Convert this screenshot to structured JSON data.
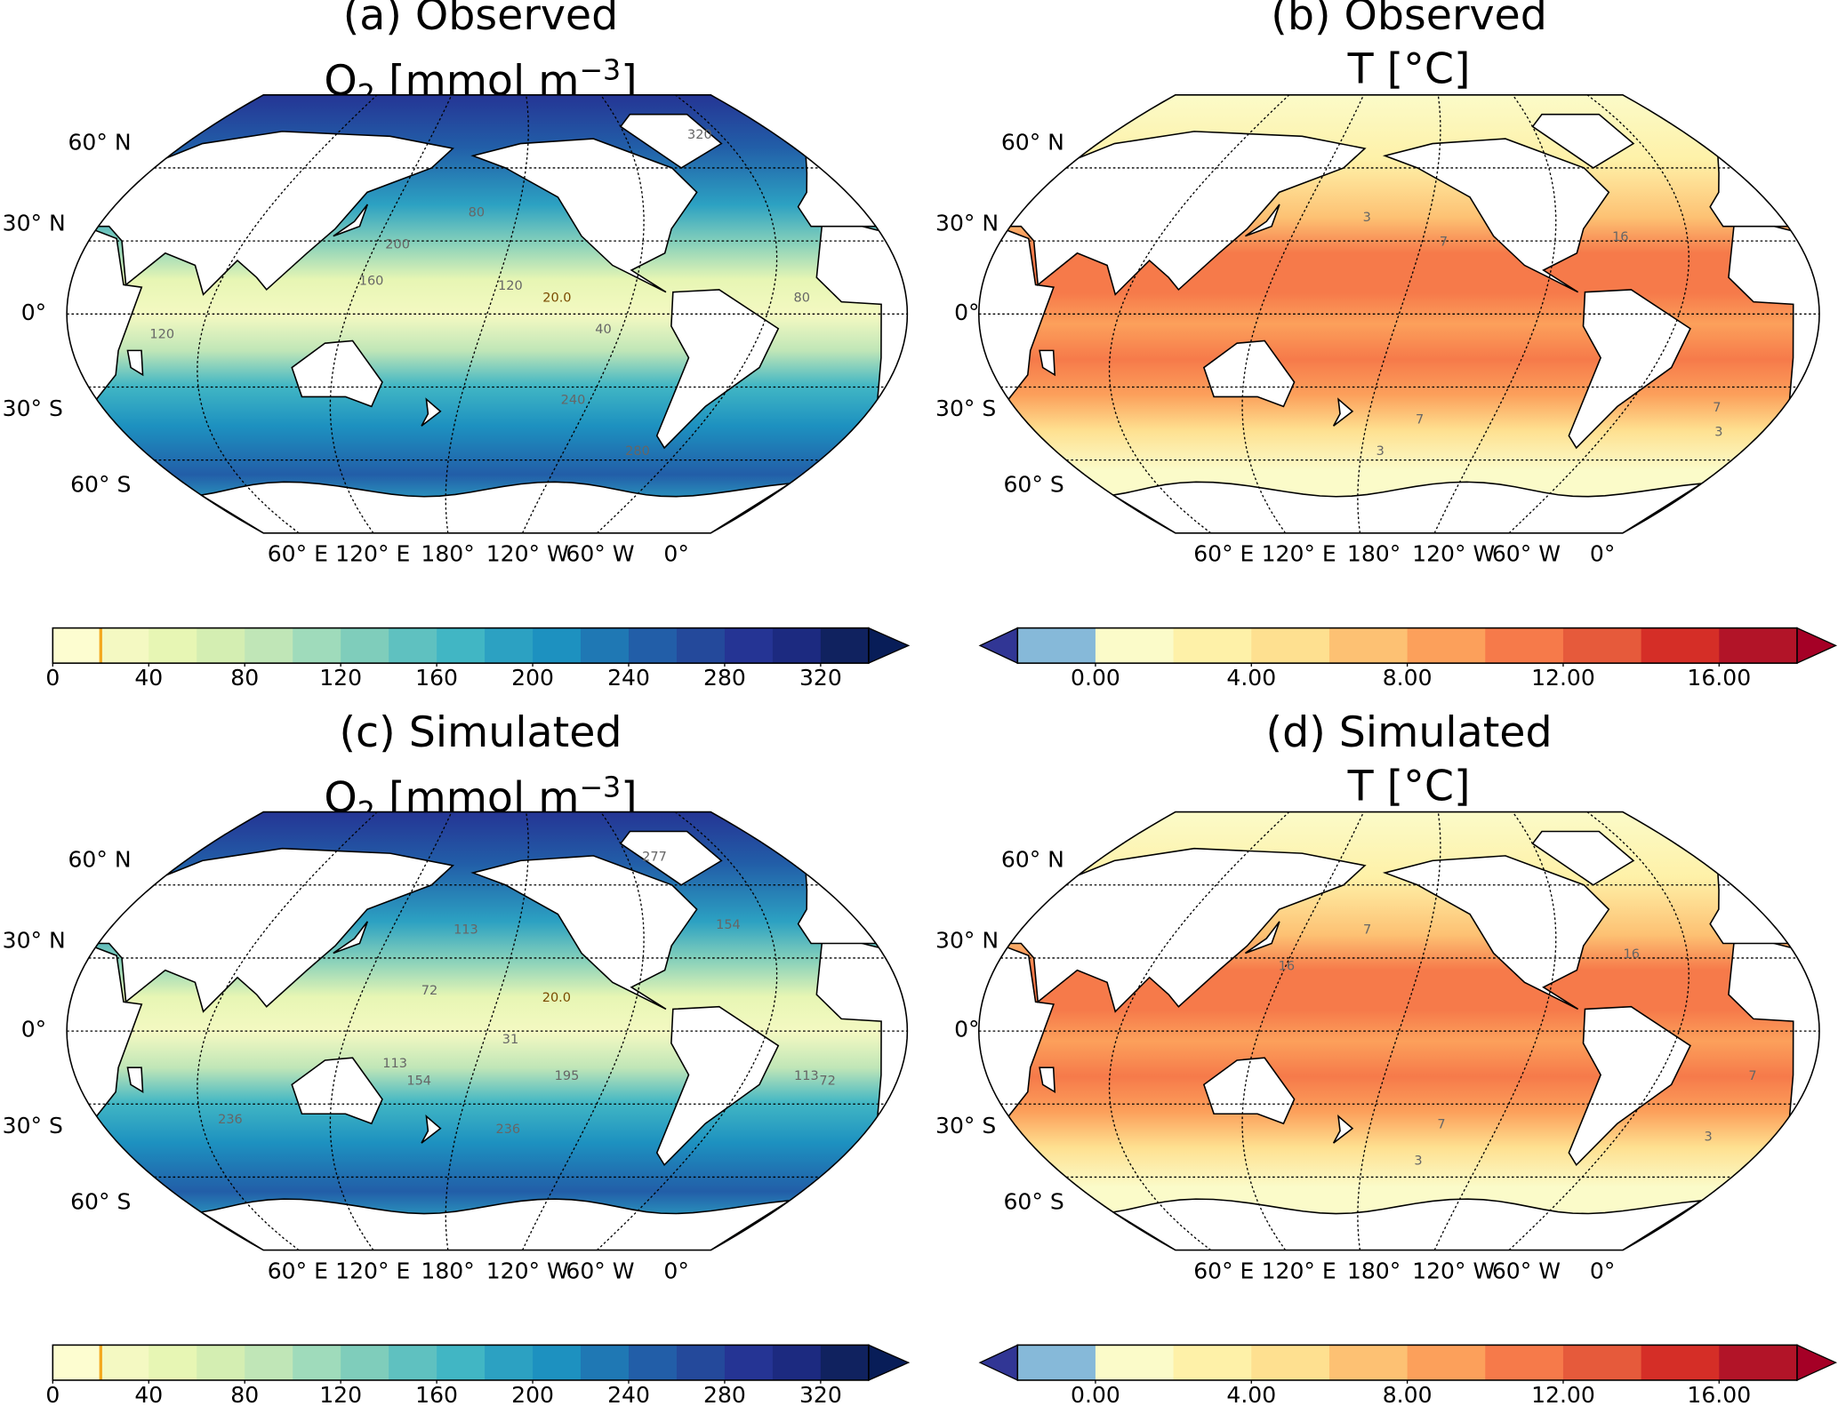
{
  "panels": [
    {
      "id": "a",
      "title": "(a) Observed",
      "subtitle_main": "O",
      "subtitle_sub": "2",
      "subtitle_rest": " [mmol m",
      "subtitle_sup": "−3",
      "subtitle_end": "]",
      "variable": "O2",
      "contour_labels": [
        {
          "text": "20.0",
          "lon": -130,
          "lat": 5
        },
        {
          "text": "40",
          "lon": -110,
          "lat": -8
        },
        {
          "text": "80",
          "lon": -165,
          "lat": 40
        },
        {
          "text": "120",
          "lon": -150,
          "lat": 10
        },
        {
          "text": "160",
          "lon": 150,
          "lat": 12
        },
        {
          "text": "200",
          "lon": 160,
          "lat": 27
        },
        {
          "text": "240",
          "lon": -120,
          "lat": -37
        },
        {
          "text": "280",
          "lon": -80,
          "lat": -58
        },
        {
          "text": "320",
          "lon": -30,
          "lat": 72
        },
        {
          "text": "120",
          "lon": 60,
          "lat": -10
        },
        {
          "text": "80",
          "lon": -25,
          "lat": 5
        }
      ]
    },
    {
      "id": "b",
      "title": "(b) Observed",
      "subtitle_main": "T [°C]",
      "variable": "T",
      "contour_labels": [
        {
          "text": "3",
          "lon": -175,
          "lat": 38
        },
        {
          "text": "7",
          "lon": -140,
          "lat": 28
        },
        {
          "text": "16",
          "lon": -60,
          "lat": 30
        },
        {
          "text": "7",
          "lon": -150,
          "lat": -45
        },
        {
          "text": "3",
          "lon": -170,
          "lat": -58
        },
        {
          "text": "7",
          "lon": -10,
          "lat": -40
        },
        {
          "text": "3",
          "lon": 0,
          "lat": -50
        }
      ]
    },
    {
      "id": "c",
      "title": "(c) Simulated",
      "subtitle_main": "O",
      "subtitle_sub": "2",
      "subtitle_rest": " [mmol m",
      "subtitle_sup": "−3",
      "subtitle_end": "]",
      "variable": "O2",
      "contour_labels": [
        {
          "text": "113",
          "lon": -170,
          "lat": 40
        },
        {
          "text": "72",
          "lon": 175,
          "lat": 15
        },
        {
          "text": "31",
          "lon": -150,
          "lat": -5
        },
        {
          "text": "113",
          "lon": 160,
          "lat": -15
        },
        {
          "text": "154",
          "lon": 170,
          "lat": -22
        },
        {
          "text": "195",
          "lon": -125,
          "lat": -20
        },
        {
          "text": "236",
          "lon": -150,
          "lat": -42
        },
        {
          "text": "236",
          "lon": 80,
          "lat": -38
        },
        {
          "text": "277",
          "lon": -60,
          "lat": 70
        },
        {
          "text": "154",
          "lon": -45,
          "lat": 42
        },
        {
          "text": "20.0",
          "lon": -130,
          "lat": 12
        },
        {
          "text": "113",
          "lon": -20,
          "lat": -20
        },
        {
          "text": "72",
          "lon": -10,
          "lat": -22
        }
      ]
    },
    {
      "id": "d",
      "title": "(d) Simulated",
      "subtitle_main": "T [°C]",
      "variable": "T",
      "contour_labels": [
        {
          "text": "7",
          "lon": -175,
          "lat": 40
        },
        {
          "text": "16",
          "lon": -55,
          "lat": 30
        },
        {
          "text": "16",
          "lon": 150,
          "lat": 25
        },
        {
          "text": "7",
          "lon": -140,
          "lat": -40
        },
        {
          "text": "3",
          "lon": -150,
          "lat": -55
        },
        {
          "text": "7",
          "lon": -5,
          "lat": -20
        },
        {
          "text": "3",
          "lon": -10,
          "lat": -45
        }
      ]
    }
  ],
  "lat_labels": [
    "60° N",
    "30° N",
    "0°",
    "30° S",
    "60° S"
  ],
  "lon_labels": [
    "60° E",
    "120° E",
    "180°",
    "120° W",
    "60° W",
    "0°"
  ],
  "colorbars": {
    "O2": {
      "ticks": [
        "0",
        "40",
        "80",
        "120",
        "160",
        "200",
        "240",
        "280",
        "320"
      ],
      "min": 0,
      "max": 340,
      "tick_values": [
        0,
        40,
        80,
        120,
        160,
        200,
        240,
        280,
        320
      ],
      "colors": [
        "#fdfdd0",
        "#f4f9c2",
        "#e7f6b4",
        "#d4eeb2",
        "#c0e6b7",
        "#9fdbbb",
        "#7fcdbb",
        "#5fc1c0",
        "#41b6c4",
        "#2ca1c2",
        "#1d91c0",
        "#1f78b4",
        "#225ea8",
        "#24499b",
        "#253494",
        "#1c2a80",
        "#10225f"
      ],
      "extend_color": "#081d58",
      "highlight_value": 20,
      "highlight_color": "#f4a81d"
    },
    "T": {
      "ticks": [
        "0.00",
        "4.00",
        "8.00",
        "12.00",
        "16.00"
      ],
      "min": -2,
      "max": 18,
      "tick_values": [
        0,
        4,
        8,
        12,
        16
      ],
      "colors": [
        "#86b9d9",
        "#fbfbc9",
        "#fef1a8",
        "#fee090",
        "#fdc173",
        "#fca05b",
        "#f67a4a",
        "#e65a3b",
        "#d52e27",
        "#b21428"
      ],
      "extend_low_color": "#313695",
      "extend_high_color": "#a50026"
    }
  }
}
